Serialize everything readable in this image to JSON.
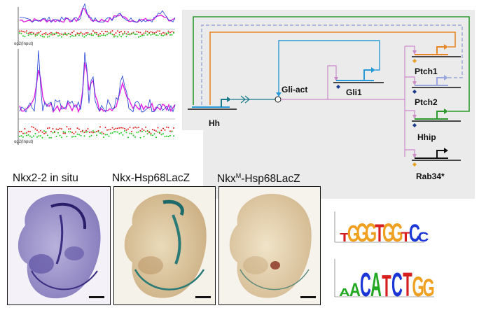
{
  "chip_panel": {
    "ratio_label_top": "og2(Input)",
    "ratio_label_bottom": "og2(Input)",
    "colors": {
      "blue": "#1f3fd6",
      "magenta": "#e020e0",
      "red": "#e01818",
      "green": "#18c818"
    }
  },
  "network": {
    "nodes": {
      "hh": "Hh",
      "gli_act": "Gli-act",
      "gli1": "Gli1",
      "ptch1": "Ptch1",
      "ptch2": "Ptch2",
      "hhip": "Hhip",
      "rab34": "Rab34*"
    },
    "colors": {
      "green": "#2e9a2e",
      "orange": "#e8862a",
      "dashed": "#8a9ad6",
      "blue": "#2a9ad6",
      "teal": "#1a7a8a",
      "pink": "#c98ac9",
      "lavender": "#99a6e0",
      "black": "#111111",
      "panel": "#ebebeb"
    }
  },
  "embryos": {
    "panel1": {
      "label": "Nkx2-2 in situ"
    },
    "panel2": {
      "label": "Nkx-Hsp68LacZ"
    },
    "panel3": {
      "label_prefix": "Nkx",
      "label_sup": "M",
      "label_suffix": "-Hsp68LacZ"
    }
  },
  "motifs": {
    "logo1": {
      "sequence": "TGGGTGGTCC"
    },
    "logo2": {
      "sequence": "AACATCTGG"
    },
    "colors": {
      "A": "#22a822",
      "C": "#1d37d6",
      "G": "#f0a020",
      "T": "#d62020"
    }
  }
}
